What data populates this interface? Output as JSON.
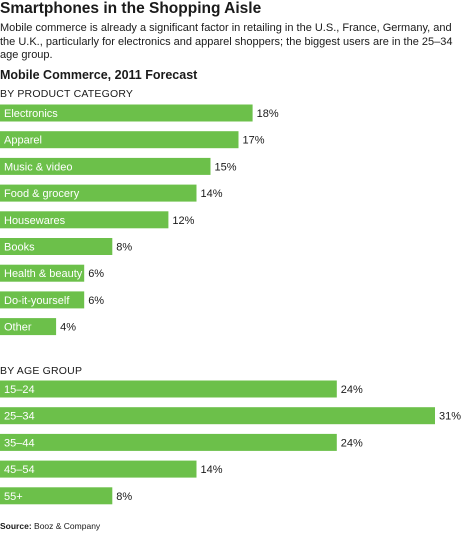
{
  "header": {
    "title": "Smartphones in the Shopping Aisle",
    "subtitle": "Mobile commerce is already a significant factor in retailing in the U.S., France, Germany, and the U.K., particularly for electronics and apparel shoppers; the biggest users are in the 25–34 age group."
  },
  "source": {
    "label": "Source:",
    "text": "Booz & Company"
  },
  "chart_data": {
    "type": "bar",
    "orientation": "horizontal",
    "title": "Mobile Commerce, 2011 Forecast",
    "bar_color": "#6cc04a",
    "value_suffix": "%",
    "sections": [
      {
        "label": "BY PRODUCT CATEGORY",
        "categories": [
          "Electronics",
          "Apparel",
          "Music & video",
          "Food & grocery",
          "Housewares",
          "Books",
          "Health & beauty",
          "Do-it-yourself",
          "Other"
        ],
        "values": [
          18,
          17,
          15,
          14,
          12,
          8,
          6,
          6,
          4
        ]
      },
      {
        "label": "BY AGE GROUP",
        "categories": [
          "15–24",
          "25–34",
          "35–44",
          "45–54",
          "55+"
        ],
        "values": [
          24,
          31,
          24,
          14,
          8
        ]
      }
    ]
  }
}
